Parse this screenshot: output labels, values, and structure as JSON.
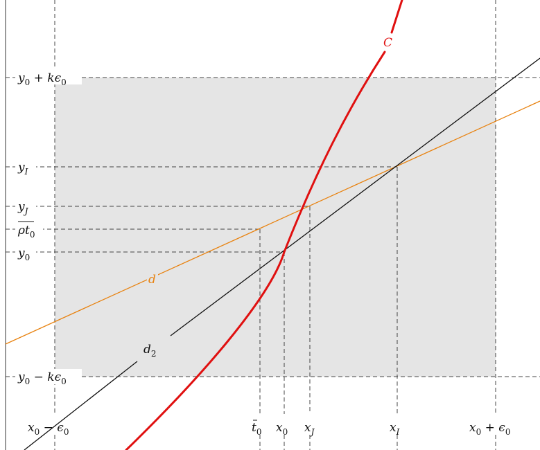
{
  "diagram": {
    "curve_label": "C",
    "line_d_label": "d",
    "line_d2_label": "d",
    "line_d2_subscript": "2",
    "y_labels": {
      "top": {
        "base": "y",
        "sub": "0",
        "rest": " + kϵ",
        "rest_sub": "0"
      },
      "yI": {
        "base": "y",
        "sub": "I"
      },
      "yJ": {
        "base": "y",
        "sub": "J"
      },
      "rho": {
        "base": "ρt",
        "sub": "0"
      },
      "y0": {
        "base": "y",
        "sub": "0"
      },
      "bottom": {
        "base": "y",
        "sub": "0",
        "rest": " − kϵ",
        "rest_sub": "0"
      }
    },
    "x_labels": {
      "left": {
        "base": "x",
        "sub": "0",
        "rest": " − ϵ",
        "rest_sub": "0"
      },
      "t0": {
        "base": "t",
        "sub": "0"
      },
      "x0": {
        "base": "x",
        "sub": "0"
      },
      "xJ": {
        "base": "x",
        "sub": "J"
      },
      "xI": {
        "base": "x",
        "sub": "I"
      },
      "right": {
        "base": "x",
        "sub": "0",
        "rest": " + ϵ",
        "rest_sub": "0"
      }
    },
    "colors": {
      "curve": "#e01010",
      "line_d": "#e8820f",
      "line_d2": "#111111",
      "guides": "#444444",
      "box_fill": "#e5e5e5",
      "frame": "#333333"
    }
  }
}
